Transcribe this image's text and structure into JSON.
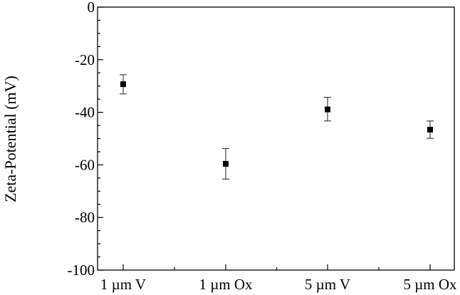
{
  "chart_data": {
    "type": "scatter",
    "title": "",
    "xlabel": "",
    "ylabel": "Zeta-Potential (mV)",
    "categories": [
      "1 µm V",
      "1 µm Ox",
      "5 µm V",
      "5 µm Ox"
    ],
    "ylim": [
      -100,
      0
    ],
    "yticks_major": [
      0,
      -20,
      -40,
      -60,
      -80,
      -100
    ],
    "yticks_major_labels": [
      "0",
      "-20",
      "-40",
      "-60",
      "-80",
      "-100"
    ],
    "yticks_minor_step": 5,
    "grid": false,
    "legend": "none",
    "series": [
      {
        "values": [
          -29.3,
          -59.6,
          -38.9,
          -46.6
        ],
        "err_low": [
          3.7,
          5.8,
          4.4,
          3.3
        ],
        "err_high": [
          3.6,
          5.8,
          4.6,
          3.3
        ]
      }
    ],
    "marker_color": "#000000"
  }
}
